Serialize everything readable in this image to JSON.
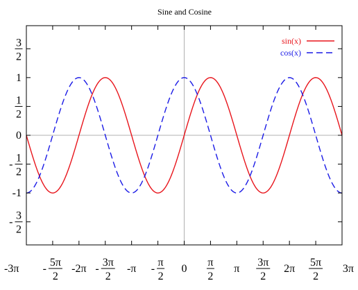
{
  "chart_data": {
    "type": "line",
    "title": "Sine and Cosine",
    "xlabel": "",
    "ylabel": "",
    "xlim": [
      -9.42478,
      9.42478
    ],
    "ylim": [
      -1.9,
      1.9
    ],
    "grid": false,
    "zero_axes": true,
    "legend": {
      "position": "top-right"
    },
    "x_ticks": [
      {
        "value": -9.42478,
        "label": "-3π"
      },
      {
        "value": -7.85398,
        "num": "5π",
        "den": "2",
        "sign": "-"
      },
      {
        "value": -6.28319,
        "label": "-2π"
      },
      {
        "value": -4.71239,
        "num": "3π",
        "den": "2",
        "sign": "-"
      },
      {
        "value": -3.14159,
        "label": "-π"
      },
      {
        "value": -1.5708,
        "num": "π",
        "den": "2",
        "sign": "-"
      },
      {
        "value": 0,
        "label": "0"
      },
      {
        "value": 1.5708,
        "num": "π",
        "den": "2",
        "sign": ""
      },
      {
        "value": 3.14159,
        "label": "π"
      },
      {
        "value": 4.71239,
        "num": "3π",
        "den": "2",
        "sign": ""
      },
      {
        "value": 6.28319,
        "label": "2π"
      },
      {
        "value": 7.85398,
        "num": "5π",
        "den": "2",
        "sign": ""
      },
      {
        "value": 9.42478,
        "label": "3π"
      }
    ],
    "y_ticks": [
      {
        "value": 1.5,
        "num": "3",
        "den": "2",
        "sign": ""
      },
      {
        "value": 1,
        "label": "1"
      },
      {
        "value": 0.5,
        "num": "1",
        "den": "2",
        "sign": ""
      },
      {
        "value": 0,
        "label": "0"
      },
      {
        "value": -0.5,
        "num": "1",
        "den": "2",
        "sign": "-"
      },
      {
        "value": -1,
        "label": "-1"
      },
      {
        "value": -1.5,
        "num": "3",
        "den": "2",
        "sign": "-"
      }
    ],
    "series": [
      {
        "name": "sin(x)",
        "function": "sin",
        "color": "#e8141b",
        "style": "solid"
      },
      {
        "name": "cos(x)",
        "function": "cos",
        "color": "#1a1ae6",
        "style": "dashed"
      }
    ]
  }
}
